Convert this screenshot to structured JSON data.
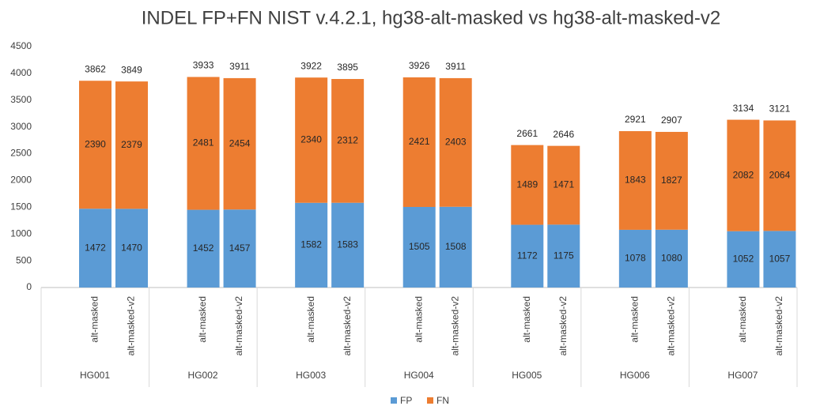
{
  "chart_data": {
    "type": "stacked-bar",
    "title": "INDEL FP+FN NIST v.4.2.1, hg38-alt-masked vs hg38-alt-masked-v2",
    "groups": [
      "HG001",
      "HG002",
      "HG003",
      "HG004",
      "HG005",
      "HG006",
      "HG007"
    ],
    "categories": [
      "alt-masked",
      "alt-masked-v2",
      "alt-masked",
      "alt-masked-v2",
      "alt-masked",
      "alt-masked-v2",
      "alt-masked",
      "alt-masked-v2",
      "alt-masked",
      "alt-masked-v2",
      "alt-masked",
      "alt-masked-v2",
      "alt-masked",
      "alt-masked-v2"
    ],
    "series": [
      {
        "name": "FP",
        "color": "#5b9bd5",
        "values": [
          1472,
          1470,
          1452,
          1457,
          1582,
          1583,
          1505,
          1508,
          1172,
          1175,
          1078,
          1080,
          1052,
          1057
        ]
      },
      {
        "name": "FN",
        "color": "#ed7d31",
        "values": [
          2390,
          2379,
          2481,
          2454,
          2340,
          2312,
          2421,
          2403,
          1489,
          1471,
          1843,
          1827,
          2082,
          2064
        ]
      }
    ],
    "totals": [
      3862,
      3849,
      3933,
      3911,
      3922,
      3895,
      3926,
      3911,
      2661,
      2646,
      2921,
      2907,
      3134,
      3121
    ],
    "ylim": [
      0,
      4500
    ],
    "yticks": [
      0,
      500,
      1000,
      1500,
      2000,
      2500,
      3000,
      3500,
      4000,
      4500
    ],
    "grid": false,
    "legend": "bottom"
  }
}
